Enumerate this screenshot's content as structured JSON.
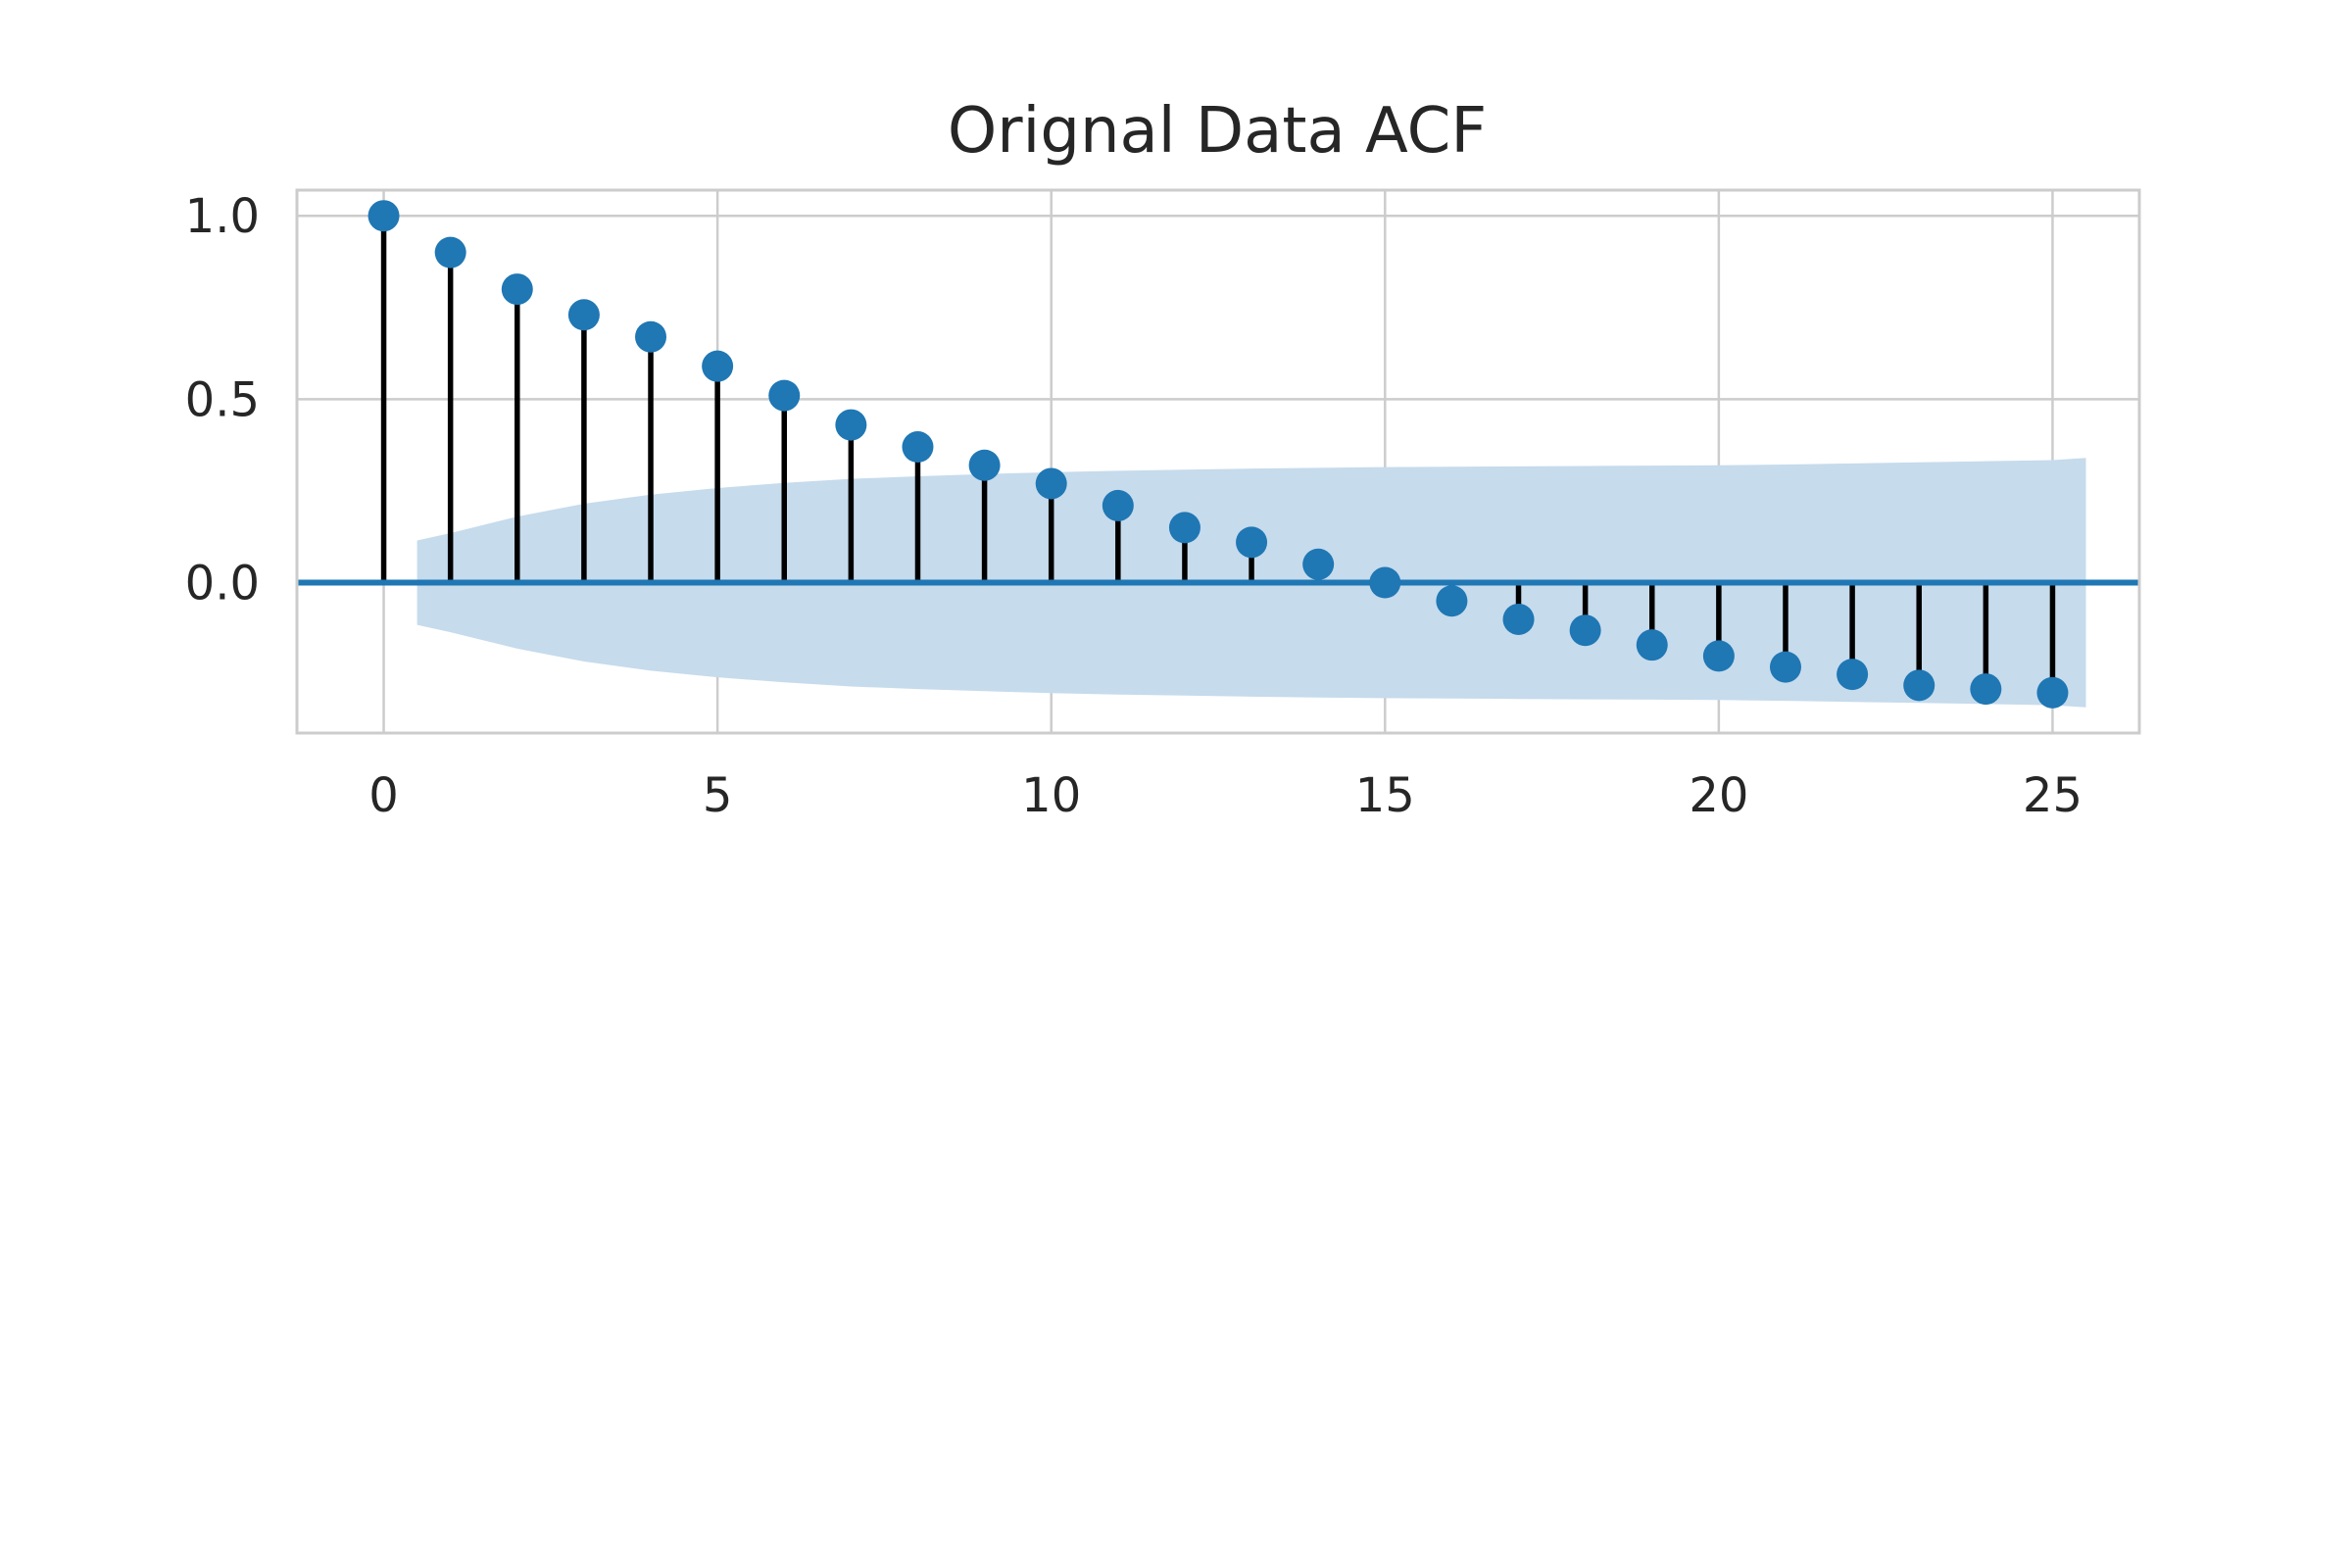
{
  "chart_data": {
    "type": "stem",
    "title": "Orignal Data ACF",
    "xlabel": "",
    "ylabel": "",
    "xlim": [
      -1.3,
      26.3
    ],
    "ylim": [
      -0.41,
      1.07
    ],
    "grid": true,
    "x_ticks": [
      0,
      5,
      10,
      15,
      20,
      25
    ],
    "x_tick_labels": [
      "0",
      "5",
      "10",
      "15",
      "20",
      "25"
    ],
    "y_ticks": [
      0.0,
      0.5,
      1.0
    ],
    "y_tick_labels": [
      "0.0",
      "0.5",
      "1.0"
    ],
    "lags": [
      0,
      1,
      2,
      3,
      4,
      5,
      6,
      7,
      8,
      9,
      10,
      11,
      12,
      13,
      14,
      15,
      16,
      17,
      18,
      19,
      20,
      21,
      22,
      23,
      24,
      25
    ],
    "acf": [
      1.0,
      0.9,
      0.8,
      0.73,
      0.67,
      0.59,
      0.51,
      0.43,
      0.37,
      0.32,
      0.27,
      0.21,
      0.15,
      0.11,
      0.05,
      0.0,
      -0.05,
      -0.1,
      -0.13,
      -0.17,
      -0.2,
      -0.23,
      -0.25,
      -0.28,
      -0.29,
      -0.3
    ],
    "confint_x": [
      0.5,
      1,
      2,
      3,
      4,
      5,
      6,
      7,
      8,
      9,
      10,
      11,
      12,
      13,
      14,
      15,
      16,
      17,
      18,
      19,
      20,
      21,
      22,
      23,
      24,
      25,
      25.5
    ],
    "confint_half_width": [
      0.115,
      0.135,
      0.18,
      0.215,
      0.24,
      0.258,
      0.272,
      0.283,
      0.29,
      0.296,
      0.301,
      0.305,
      0.308,
      0.311,
      0.313,
      0.315,
      0.316,
      0.317,
      0.318,
      0.319,
      0.32,
      0.322,
      0.325,
      0.328,
      0.331,
      0.334,
      0.34
    ],
    "colors": {
      "marker": "#1f77b4",
      "stem": "#000000",
      "baseline": "#1f77b4",
      "confint_fill": "#c6dbec",
      "grid": "#cccccc",
      "axes_edge": "#cccccc",
      "text": "#262626"
    }
  }
}
